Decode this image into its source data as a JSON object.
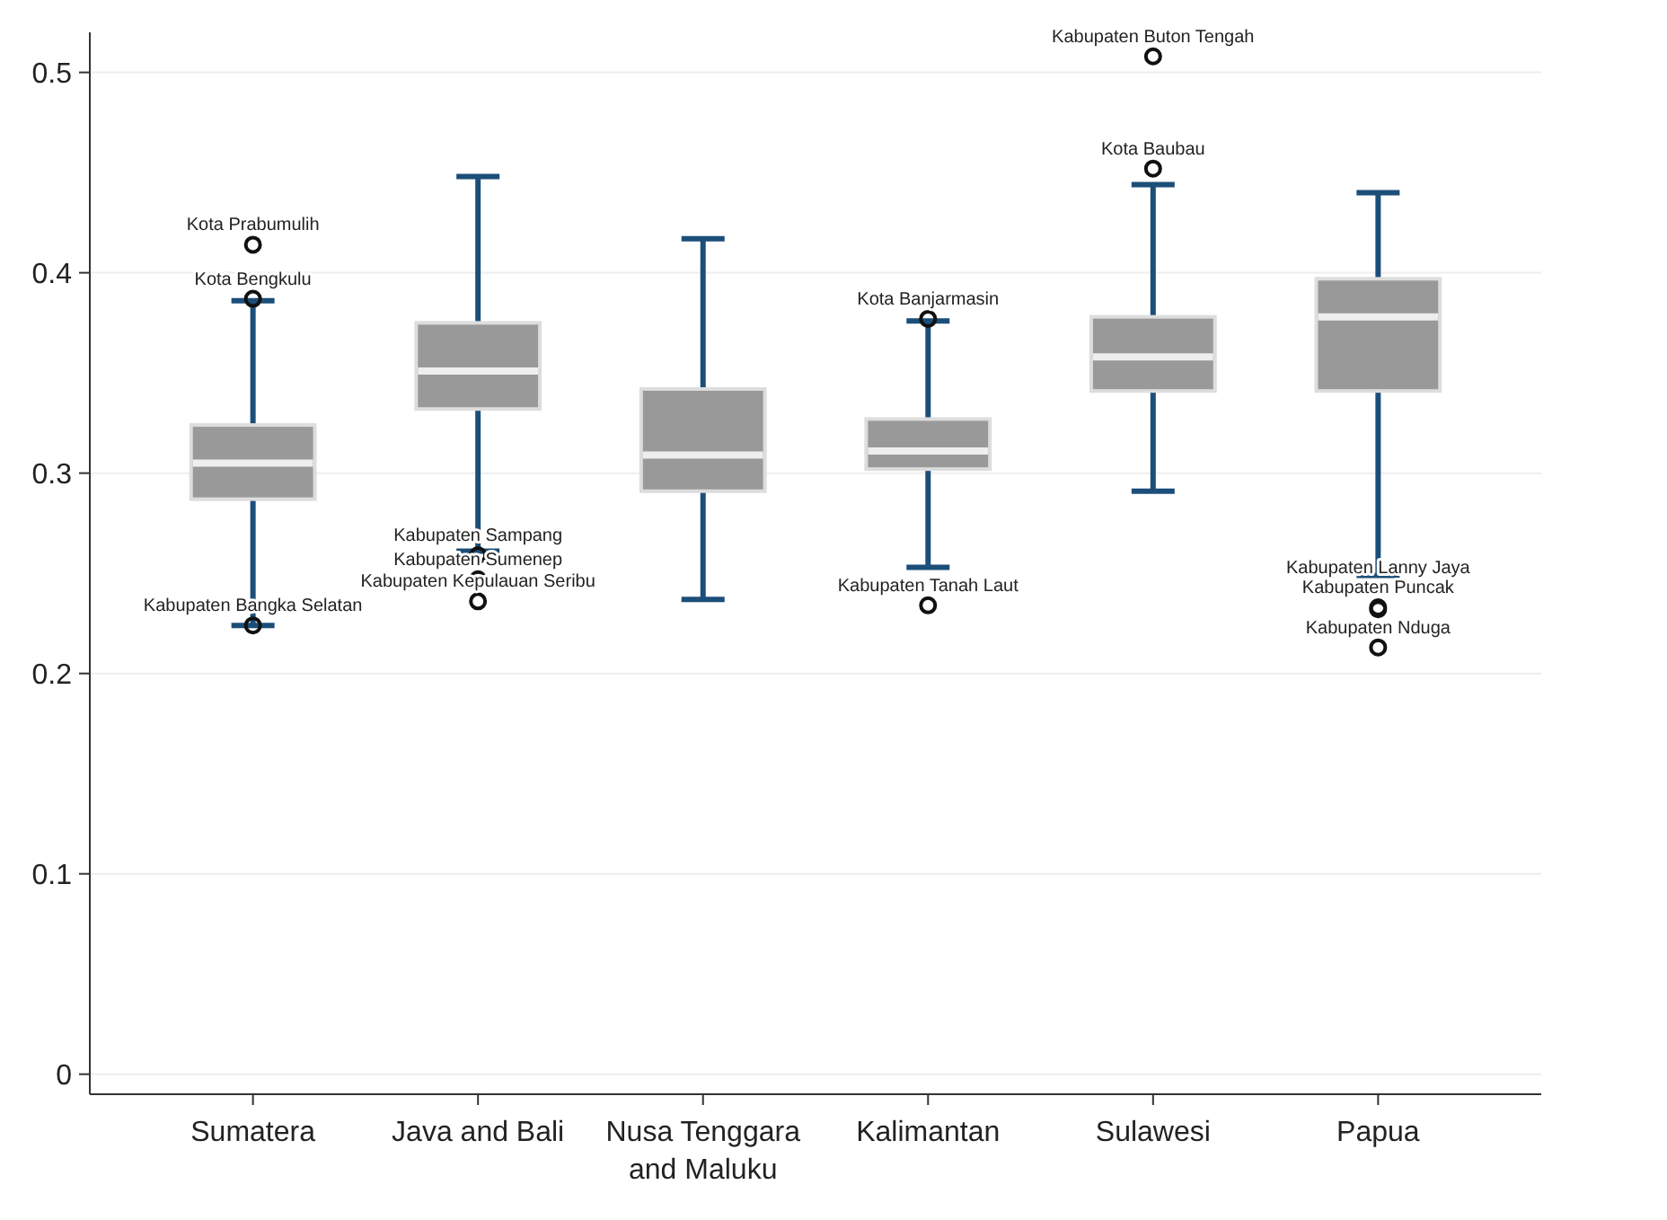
{
  "chart_data": {
    "type": "box",
    "categories": [
      "Sumatera",
      "Java and Bali",
      "Nusa Tenggara and Maluku",
      "Kalimantan",
      "Sulawesi",
      "Papua"
    ],
    "boxes": [
      {
        "low": 0.224,
        "q1": 0.287,
        "median": 0.305,
        "q3": 0.324,
        "high": 0.386,
        "outliers": [
          0.414,
          0.387,
          0.224
        ]
      },
      {
        "low": 0.261,
        "q1": 0.332,
        "median": 0.351,
        "q3": 0.375,
        "high": 0.448,
        "outliers": [
          0.259,
          0.247,
          0.236
        ]
      },
      {
        "low": 0.237,
        "q1": 0.291,
        "median": 0.309,
        "q3": 0.342,
        "high": 0.417
      },
      {
        "low": 0.253,
        "q1": 0.302,
        "median": 0.311,
        "q3": 0.327,
        "high": 0.376,
        "outliers": [
          0.377,
          0.234
        ]
      },
      {
        "low": 0.291,
        "q1": 0.341,
        "median": 0.358,
        "q3": 0.378,
        "high": 0.444,
        "outliers": [
          0.508,
          0.452
        ]
      },
      {
        "low": 0.249,
        "q1": 0.341,
        "median": 0.378,
        "q3": 0.397,
        "high": 0.44,
        "outliers": [
          0.233,
          0.232,
          0.213
        ]
      }
    ],
    "color": "#999999",
    "ylim": [
      -0.01,
      0.52
    ],
    "yticks": [
      0,
      0.1,
      0.2,
      0.3,
      0.4,
      0.5
    ],
    "grid": "y",
    "annotations": [
      "Kota Prabumulih",
      "Kota Bengkulu",
      "Kabupaten Bangka Selatan",
      "Kabupaten Sampang",
      "Kabupaten Sumenep",
      "Kabupaten Kepulauan Seribu",
      "Kota Banjarmasin",
      "Kabupaten Tanah Laut",
      "Kabupaten Buton Tengah",
      "Kota Baubau",
      "Kabupaten Puncak",
      "Kabupaten Lanny Jaya",
      "Kabupaten Nduga"
    ]
  }
}
